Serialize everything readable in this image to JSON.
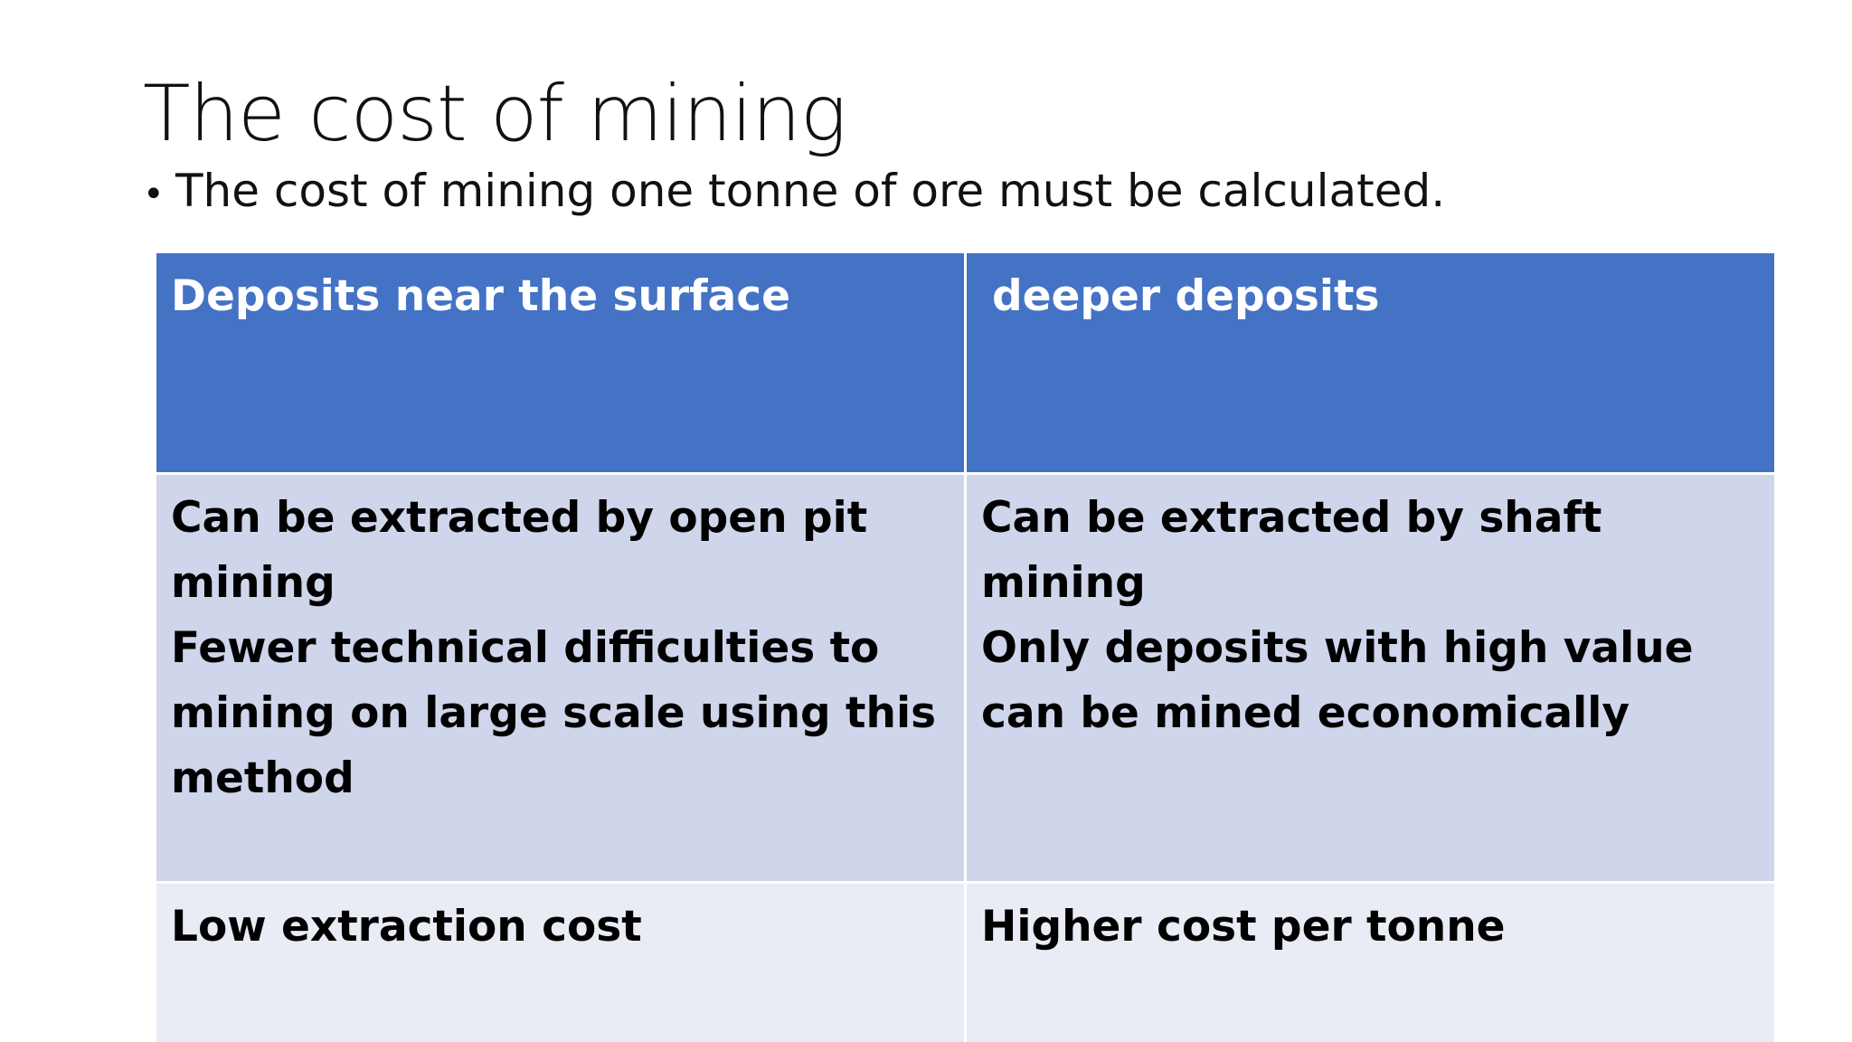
{
  "slide": {
    "title": "The cost of mining",
    "bullet_marker": "•",
    "bullet_text": "The cost of mining one tonne of ore must be calculated."
  },
  "table": {
    "headers": [
      "Deposits near the surface",
      "deeper deposits"
    ],
    "rows": [
      {
        "cells": [
          {
            "lines": [
              "Can be extracted by open pit mining",
              "Fewer technical difficulties to mining on large scale using this method"
            ]
          },
          {
            "lines": [
              "Can be extracted by shaft mining",
              "Only deposits with high value can be mined economically"
            ]
          }
        ]
      },
      {
        "cells": [
          {
            "lines": [
              "Low extraction cost"
            ]
          },
          {
            "lines": [
              "Higher cost per tonne"
            ]
          }
        ]
      }
    ]
  },
  "colors": {
    "header_bg": "#4472c4",
    "row_odd_bg": "#cfd5ea",
    "row_even_bg": "#e9ebf5"
  }
}
